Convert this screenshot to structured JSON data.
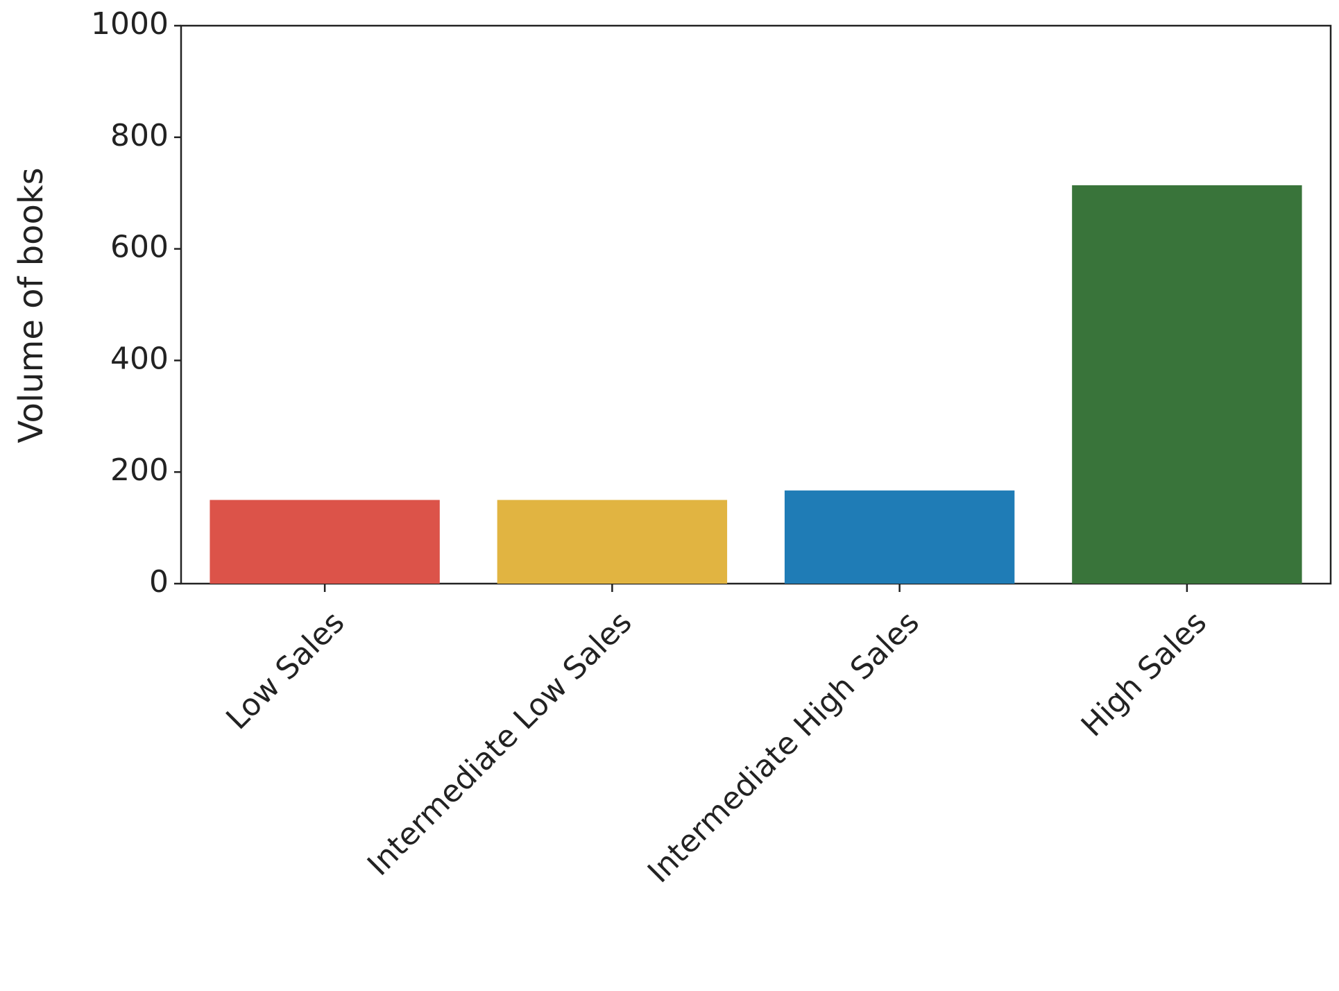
{
  "chart_data": {
    "type": "bar",
    "y_label": "Volume of books",
    "categories": [
      "Low Sales",
      "Intermediate Low Sales",
      "Intermediate High Sales",
      "High Sales"
    ],
    "values": [
      150,
      150,
      167,
      714
    ],
    "colors": [
      "#dc5349",
      "#e1b441",
      "#1f7cb6",
      "#39743a"
    ],
    "ylim": [
      0,
      1000
    ],
    "yticks": [
      0,
      200,
      400,
      600,
      800,
      1000
    ],
    "grid": false
  }
}
